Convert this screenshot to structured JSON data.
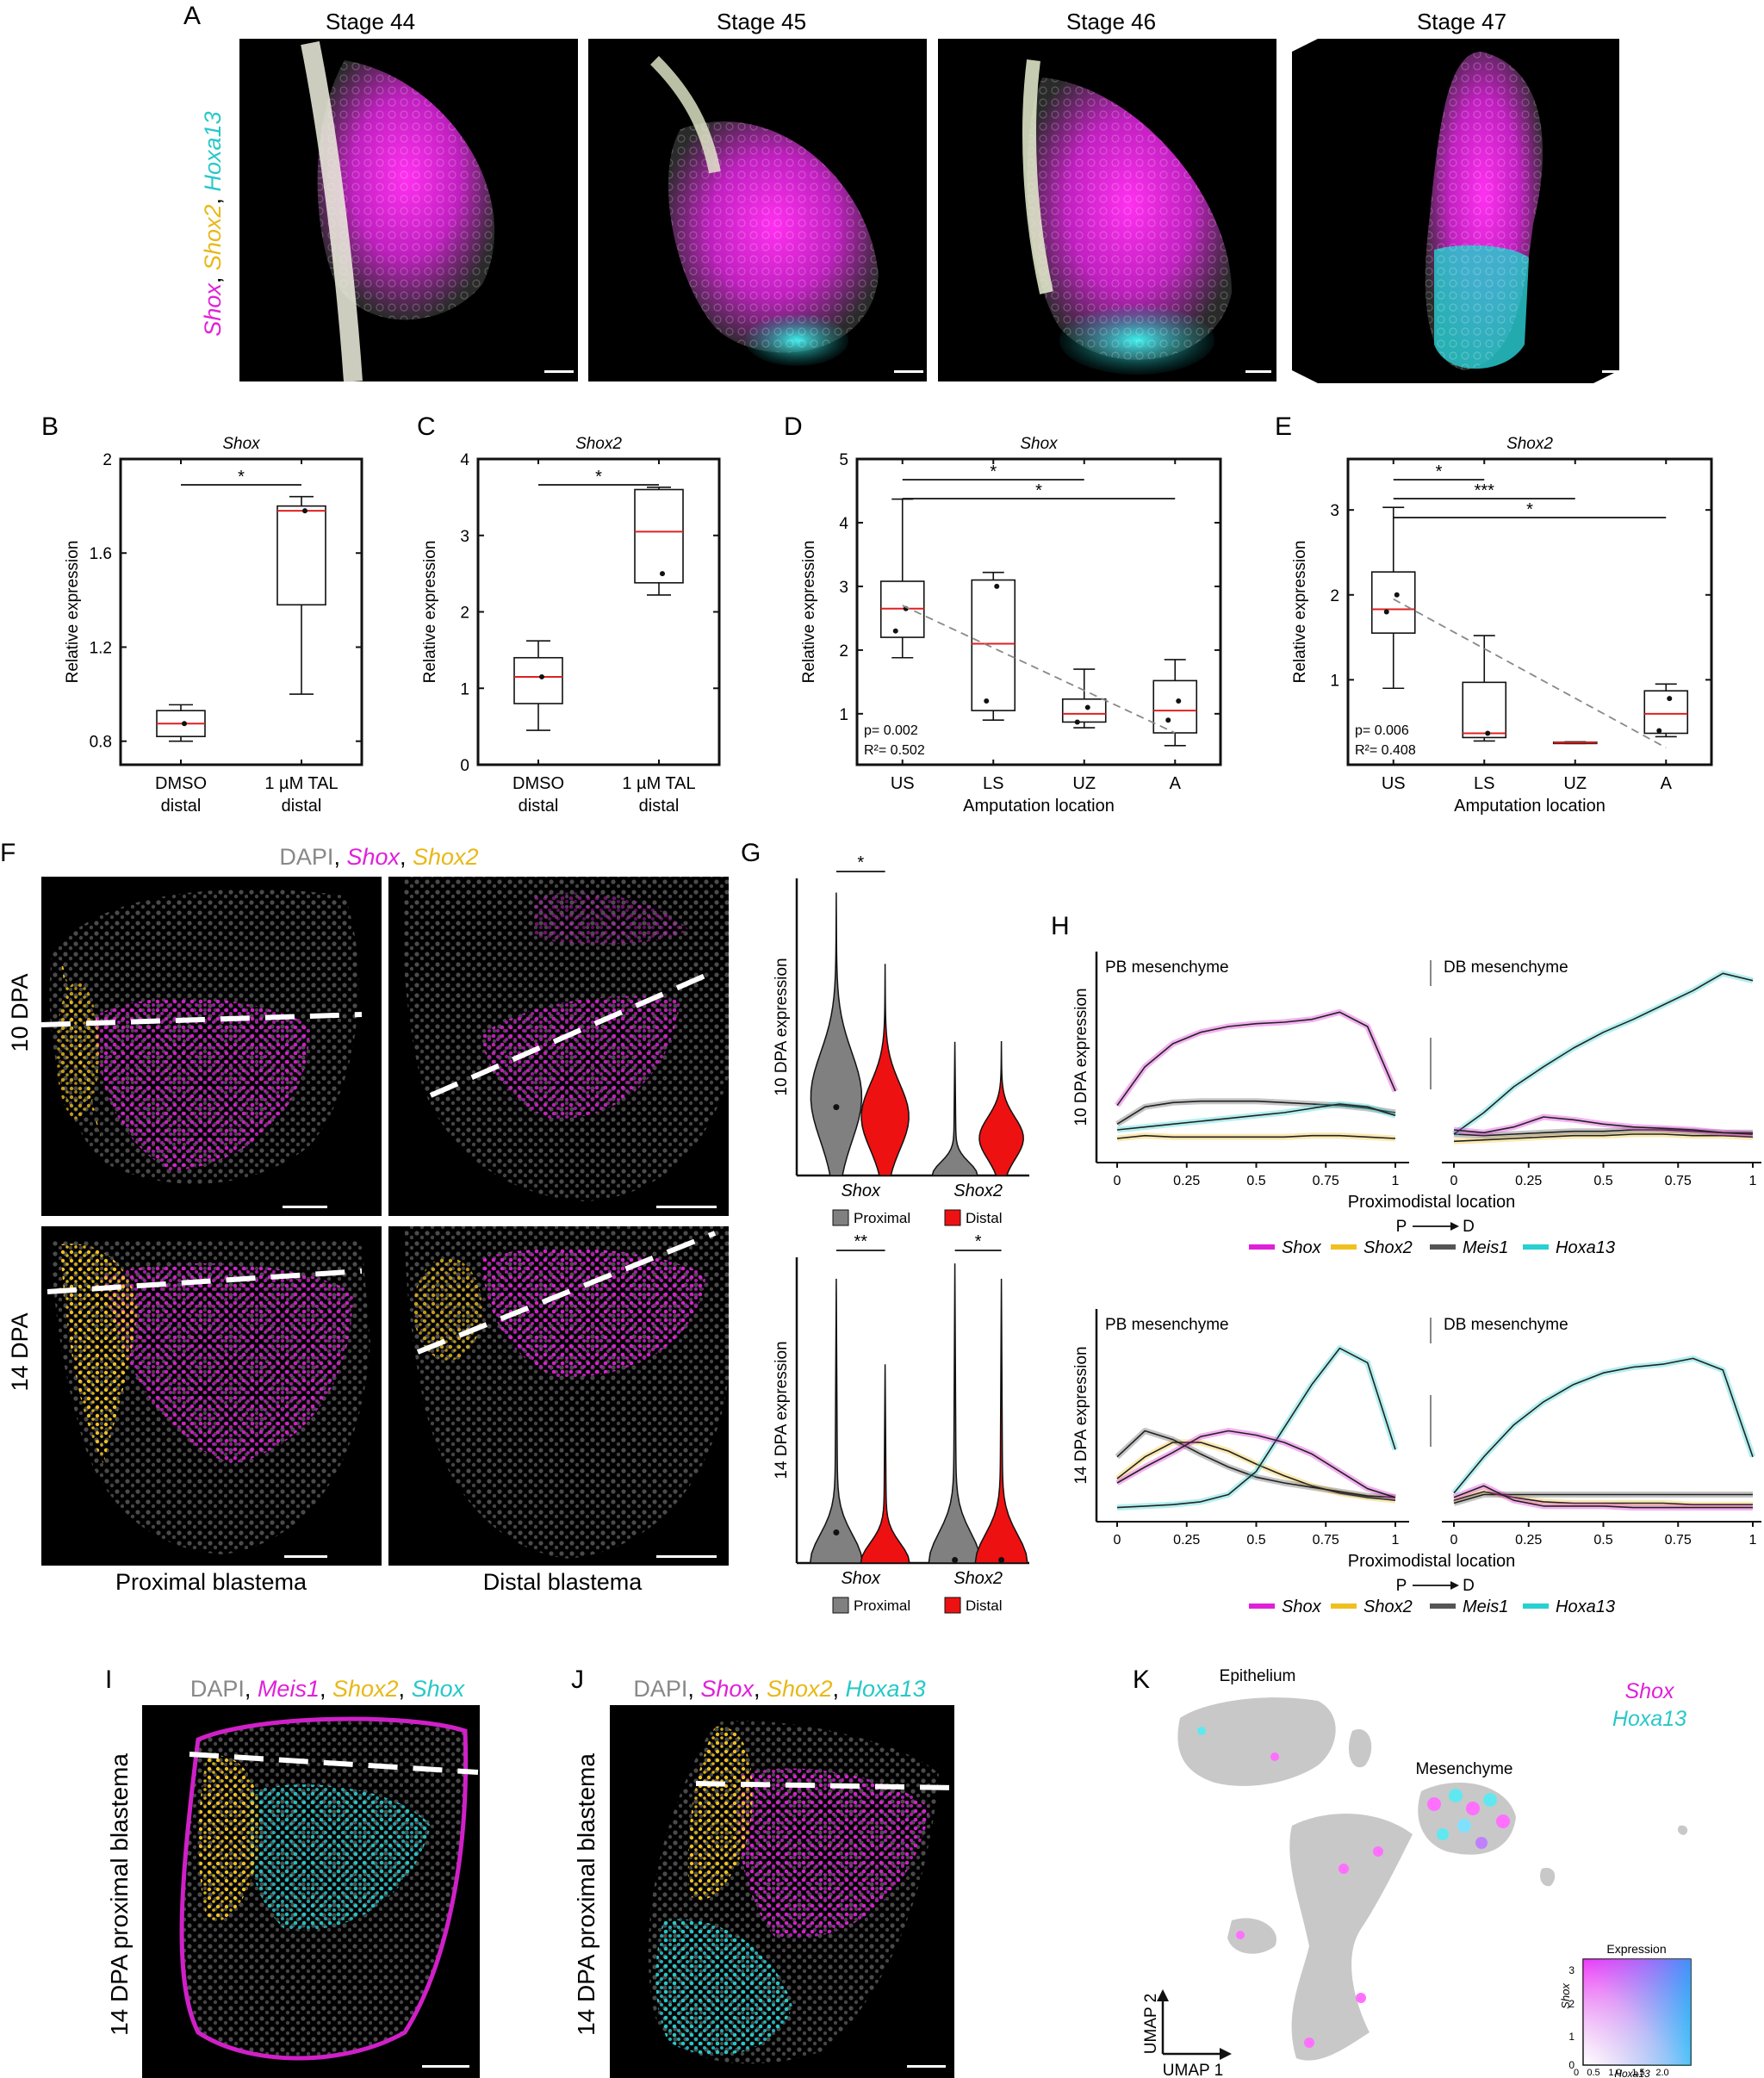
{
  "panel_letters": [
    "A",
    "B",
    "C",
    "D",
    "E",
    "F",
    "G",
    "H",
    "I",
    "J",
    "K"
  ],
  "colors": {
    "shox": "#e020d8",
    "shox2": "#f0c020",
    "hoxa13": "#28d0d0",
    "meis1": "#555555",
    "proximal": "#808080",
    "distal": "#ee1111",
    "median": "#e02020",
    "umap_gray": "#c8c8c8"
  },
  "panel_a": {
    "stages": [
      "Stage 44",
      "Stage 45",
      "Stage 46",
      "Stage 47"
    ],
    "side_label": {
      "g1": "Shox",
      "s1": ", ",
      "g2": "Shox2",
      "s2": ", ",
      "g3": "Hoxa13"
    }
  },
  "axis_labels": {
    "relative_expression": "Relative expression",
    "amputation_location": "Amputation location"
  },
  "chart_data": [
    {
      "panel": "B",
      "type": "box",
      "title": "Shox",
      "categories": [
        "DMSO\ndistal",
        "1 µM TAL\ndistal"
      ],
      "cat_lines": [
        [
          "DMSO",
          "distal"
        ],
        [
          "1 µM TAL",
          "distal"
        ]
      ],
      "ylim": [
        0.7,
        2.0
      ],
      "yticks": [
        "0.8",
        "1.2",
        "1.6",
        "2"
      ],
      "ytick_values": [
        0.8,
        1.2,
        1.6,
        2.0
      ],
      "ylabel": "Relative expression",
      "boxes": [
        {
          "min": 0.8,
          "q1": 0.82,
          "median": 0.875,
          "q3": 0.93,
          "max": 0.955,
          "points": [
            0.875
          ]
        },
        {
          "min": 1.0,
          "q1": 1.38,
          "median": 1.78,
          "q3": 1.8,
          "max": 1.84,
          "points": [
            1.78
          ]
        }
      ],
      "significance": [
        {
          "from": 0,
          "to": 1,
          "label": "*"
        }
      ]
    },
    {
      "panel": "C",
      "type": "box",
      "title": "Shox2",
      "categories": [
        "DMSO\ndistal",
        "1 µM TAL\ndistal"
      ],
      "cat_lines": [
        [
          "DMSO",
          "distal"
        ],
        [
          "1 µM TAL",
          "distal"
        ]
      ],
      "ylim": [
        0,
        4
      ],
      "yticks": [
        "0",
        "1",
        "2",
        "3",
        "4"
      ],
      "ytick_values": [
        0,
        1,
        2,
        3,
        4
      ],
      "ylabel": "Relative expression",
      "boxes": [
        {
          "min": 0.45,
          "q1": 0.8,
          "median": 1.15,
          "q3": 1.4,
          "max": 1.62,
          "points": [
            1.15
          ]
        },
        {
          "min": 2.22,
          "q1": 2.38,
          "median": 3.05,
          "q3": 3.6,
          "max": 3.63,
          "points": [
            2.5
          ]
        }
      ],
      "significance": [
        {
          "from": 0,
          "to": 1,
          "label": "*"
        }
      ]
    },
    {
      "panel": "D",
      "type": "box",
      "title": "Shox",
      "categories": [
        "US",
        "LS",
        "UZ",
        "A"
      ],
      "cat_lines": [
        [
          "US"
        ],
        [
          "LS"
        ],
        [
          "UZ"
        ],
        [
          "A"
        ]
      ],
      "ylim": [
        0.2,
        5
      ],
      "yticks": [
        "1",
        "2",
        "3",
        "4",
        "5"
      ],
      "ytick_values": [
        1,
        2,
        3,
        4,
        5
      ],
      "ylabel": "Relative expression",
      "xlabel": "Amputation location",
      "boxes": [
        {
          "min": 1.88,
          "q1": 2.2,
          "median": 2.65,
          "q3": 3.08,
          "max": 4.37,
          "points": [
            2.65,
            2.3
          ]
        },
        {
          "min": 0.9,
          "q1": 1.05,
          "median": 2.1,
          "q3": 3.1,
          "max": 3.22,
          "points": [
            3.0,
            1.2
          ]
        },
        {
          "min": 0.78,
          "q1": 0.87,
          "median": 1.0,
          "q3": 1.23,
          "max": 1.7,
          "points": [
            1.1,
            0.87
          ]
        },
        {
          "min": 0.5,
          "q1": 0.7,
          "median": 1.05,
          "q3": 1.52,
          "max": 1.85,
          "points": [
            1.2,
            0.9
          ]
        }
      ],
      "trend": [
        2.7,
        0.7
      ],
      "stats": {
        "p": "p= 0.002",
        "r2": "R²= 0.502"
      },
      "significance": [
        {
          "from": 0,
          "to": 2,
          "label": "*"
        },
        {
          "from": 0,
          "to": 3,
          "label": "*"
        }
      ]
    },
    {
      "panel": "E",
      "type": "box",
      "title": "Shox2",
      "categories": [
        "US",
        "LS",
        "UZ",
        "A"
      ],
      "cat_lines": [
        [
          "US"
        ],
        [
          "LS"
        ],
        [
          "UZ"
        ],
        [
          "A"
        ]
      ],
      "ylim": [
        0,
        3.6
      ],
      "yticks": [
        "1",
        "2",
        "3"
      ],
      "ytick_values": [
        1,
        2,
        3
      ],
      "ylabel": "Relative expression",
      "xlabel": "Amputation location",
      "boxes": [
        {
          "min": 0.9,
          "q1": 1.55,
          "median": 1.83,
          "q3": 2.27,
          "max": 3.03,
          "points": [
            2.0,
            1.8
          ]
        },
        {
          "min": 0.28,
          "q1": 0.32,
          "median": 0.37,
          "q3": 0.97,
          "max": 1.52,
          "points": [
            0.37
          ]
        },
        {
          "min": 0.25,
          "q1": 0.255,
          "median": 0.26,
          "q3": 0.265,
          "max": 0.27,
          "points": []
        },
        {
          "min": 0.33,
          "q1": 0.37,
          "median": 0.6,
          "q3": 0.87,
          "max": 0.95,
          "points": [
            0.78,
            0.4
          ]
        }
      ],
      "trend": [
        1.95,
        0.2
      ],
      "stats": {
        "p": "p= 0.006",
        "r2": "R²= 0.408"
      },
      "significance": [
        {
          "from": 0,
          "to": 1,
          "label": "*"
        },
        {
          "from": 0,
          "to": 2,
          "label": "***"
        },
        {
          "from": 0,
          "to": 3,
          "label": "*"
        }
      ]
    },
    {
      "panel": "G",
      "type": "violin",
      "ylabel": "10 DPA expression",
      "groups": [
        "Shox",
        "Shox2"
      ],
      "legend": [
        "Proximal",
        "Distal"
      ],
      "significance": [
        {
          "group": 0,
          "label": "*"
        }
      ]
    },
    {
      "panel": "G",
      "type": "violin",
      "ylabel": "14 DPA expression",
      "groups": [
        "Shox",
        "Shox2"
      ],
      "legend": [
        "Proximal",
        "Distal"
      ],
      "significance": [
        {
          "group": 0,
          "label": "**"
        },
        {
          "group": 1,
          "label": "*"
        }
      ]
    },
    {
      "panel": "H",
      "type": "line",
      "ylabel": "10 DPA expression",
      "xlabel": "Proximodistal location",
      "facets": [
        "PB mesenchyme",
        "DB mesenchyme"
      ],
      "xticks": [
        "0",
        "0.25",
        "0.5",
        "0.75",
        "1"
      ],
      "legend": [
        "Shox",
        "Shox2",
        "Meis1",
        "Hoxa13"
      ],
      "series": {
        "PB": {
          "Shox": [
            0.35,
            0.62,
            0.78,
            0.86,
            0.9,
            0.92,
            0.93,
            0.95,
            1.0,
            0.9,
            0.45
          ],
          "Shox2": [
            0.12,
            0.14,
            0.13,
            0.13,
            0.13,
            0.13,
            0.13,
            0.14,
            0.14,
            0.13,
            0.12
          ],
          "Meis1": [
            0.22,
            0.34,
            0.37,
            0.38,
            0.38,
            0.38,
            0.37,
            0.36,
            0.35,
            0.33,
            0.3
          ],
          "Hoxa13": [
            0.18,
            0.2,
            0.22,
            0.24,
            0.26,
            0.28,
            0.3,
            0.33,
            0.36,
            0.34,
            0.28
          ]
        },
        "DB": {
          "Shox": [
            0.18,
            0.16,
            0.2,
            0.27,
            0.25,
            0.22,
            0.2,
            0.19,
            0.18,
            0.16,
            0.15
          ],
          "Shox2": [
            0.1,
            0.11,
            0.12,
            0.13,
            0.14,
            0.14,
            0.15,
            0.15,
            0.14,
            0.14,
            0.13
          ],
          "Meis1": [
            0.15,
            0.14,
            0.15,
            0.16,
            0.17,
            0.17,
            0.18,
            0.18,
            0.17,
            0.16,
            0.16
          ],
          "Hoxa13": [
            0.15,
            0.3,
            0.48,
            0.62,
            0.75,
            0.86,
            0.95,
            1.05,
            1.15,
            1.27,
            1.22
          ]
        }
      }
    },
    {
      "panel": "H",
      "type": "line",
      "ylabel": "14 DPA expression",
      "xlabel": "Proximodistal location",
      "facets": [
        "PB mesenchyme",
        "DB mesenchyme"
      ],
      "xticks": [
        "0",
        "0.25",
        "0.5",
        "0.75",
        "1"
      ],
      "legend": [
        "Shox",
        "Shox2",
        "Meis1",
        "Hoxa13"
      ],
      "series": {
        "PB": {
          "Shox": [
            0.22,
            0.33,
            0.43,
            0.54,
            0.58,
            0.55,
            0.5,
            0.42,
            0.3,
            0.18,
            0.12
          ],
          "Shox2": [
            0.25,
            0.4,
            0.5,
            0.5,
            0.44,
            0.35,
            0.27,
            0.2,
            0.15,
            0.12,
            0.1
          ],
          "Meis1": [
            0.4,
            0.58,
            0.52,
            0.42,
            0.33,
            0.26,
            0.22,
            0.19,
            0.16,
            0.13,
            0.12
          ],
          "Hoxa13": [
            0.05,
            0.06,
            0.07,
            0.09,
            0.14,
            0.3,
            0.6,
            0.9,
            1.15,
            1.05,
            0.45
          ]
        },
        "DB": {
          "Shox": [
            0.12,
            0.2,
            0.1,
            0.06,
            0.06,
            0.06,
            0.05,
            0.05,
            0.05,
            0.05,
            0.05
          ],
          "Shox2": [
            0.1,
            0.16,
            0.12,
            0.09,
            0.08,
            0.08,
            0.08,
            0.08,
            0.07,
            0.07,
            0.07
          ],
          "Meis1": [
            0.08,
            0.14,
            0.14,
            0.14,
            0.14,
            0.14,
            0.14,
            0.14,
            0.14,
            0.14,
            0.14
          ],
          "Hoxa13": [
            0.15,
            0.4,
            0.62,
            0.78,
            0.9,
            0.98,
            1.02,
            1.04,
            1.08,
            1.0,
            0.4
          ]
        }
      }
    }
  ],
  "panel_f": {
    "title": {
      "g0": "DAPI",
      "s0": ", ",
      "g1": "Shox",
      "s1": ", ",
      "g2": "Shox2"
    },
    "rows": [
      "10 DPA",
      "14 DPA"
    ],
    "cols": [
      "Proximal blastema",
      "Distal blastema"
    ]
  },
  "panel_h": {
    "p_to_d": {
      "p": "P",
      "d": "D"
    }
  },
  "panel_i": {
    "title": {
      "g0": "DAPI",
      "s0": ", ",
      "g1": "Meis1",
      "s1": ", ",
      "g2": "Shox2",
      "s2": ", ",
      "g3": "Shox"
    },
    "side": "14 DPA proximal blastema"
  },
  "panel_j": {
    "title": {
      "g0": "DAPI",
      "s0": ", ",
      "g1": "Shox",
      "s1": ", ",
      "g2": "Shox2",
      "s2": ", ",
      "g3": "Hoxa13"
    },
    "side": "14 DPA proximal blastema"
  },
  "panel_k": {
    "epithelium": "Epithelium",
    "mesenchyme": "Mesenchyme",
    "legend_shox": "Shox",
    "legend_hoxa13": "Hoxa13",
    "umap1": "UMAP 1",
    "umap2": "UMAP 2",
    "expression": "Expression",
    "yaxis": "Shox",
    "xaxis": "Hoxa13",
    "yticks": [
      "0",
      "1",
      "2",
      "3"
    ],
    "xticks": [
      "0",
      "0.5",
      "1.0",
      "1.5",
      "2.0"
    ]
  }
}
